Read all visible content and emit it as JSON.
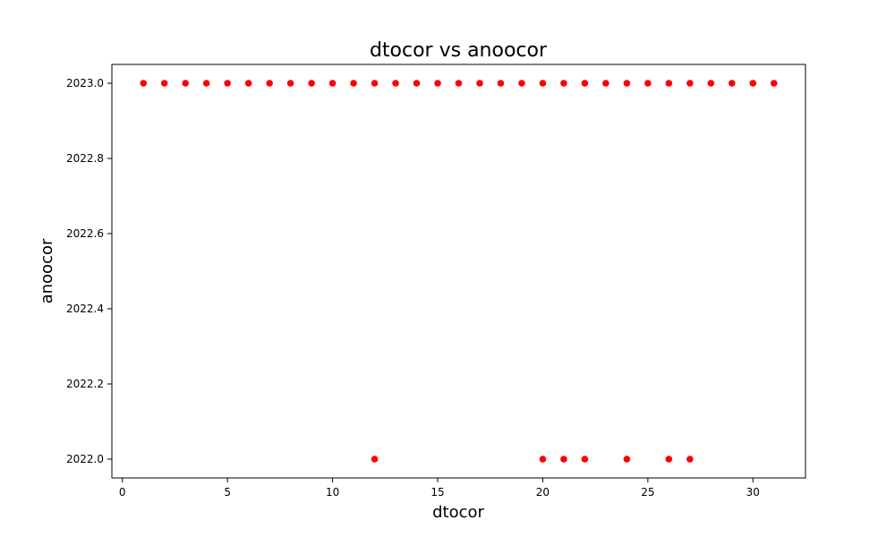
{
  "chart_data": {
    "type": "scatter",
    "title": "dtocor vs anoocor",
    "xlabel": "dtocor",
    "ylabel": "anoocor",
    "xlim": [
      -0.5,
      32.5
    ],
    "ylim": [
      2021.95,
      2023.05
    ],
    "xticks": [
      0,
      5,
      10,
      15,
      20,
      25,
      30
    ],
    "xtick_labels": [
      "0",
      "5",
      "10",
      "15",
      "20",
      "25",
      "30"
    ],
    "yticks": [
      2022.0,
      2022.2,
      2022.4,
      2022.6,
      2022.8,
      2023.0
    ],
    "ytick_labels": [
      "2022.0",
      "2022.2",
      "2022.4",
      "2022.6",
      "2022.8",
      "2023.0"
    ],
    "grid": false,
    "marker_color": "#ff0000",
    "series": [
      {
        "x": [
          1,
          2,
          3,
          4,
          5,
          6,
          7,
          8,
          9,
          10,
          11,
          12,
          13,
          14,
          15,
          16,
          17,
          18,
          19,
          20,
          21,
          22,
          23,
          24,
          25,
          26,
          27,
          28,
          29,
          30,
          31,
          12,
          20,
          21,
          22,
          24,
          26,
          27
        ],
        "y": [
          2023,
          2023,
          2023,
          2023,
          2023,
          2023,
          2023,
          2023,
          2023,
          2023,
          2023,
          2023,
          2023,
          2023,
          2023,
          2023,
          2023,
          2023,
          2023,
          2023,
          2023,
          2023,
          2023,
          2023,
          2023,
          2023,
          2023,
          2023,
          2023,
          2023,
          2023,
          2022,
          2022,
          2022,
          2022,
          2022,
          2022,
          2022
        ]
      }
    ]
  }
}
